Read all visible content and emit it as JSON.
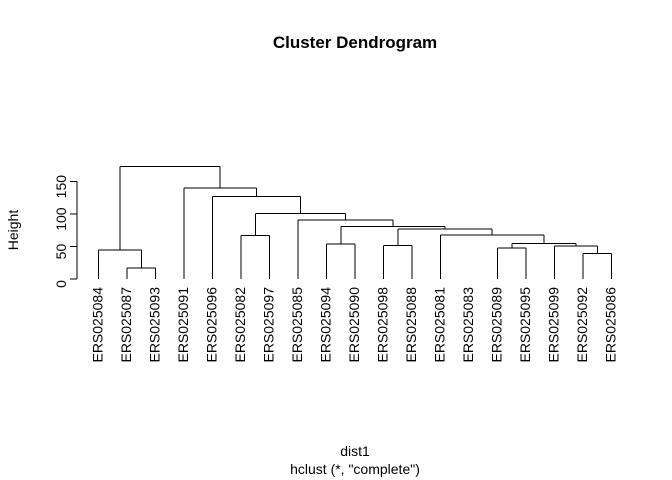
{
  "chart_data": {
    "type": "dendrogram",
    "title": "Cluster Dendrogram",
    "ylabel": "Height",
    "xlabel": "dist1",
    "subtitle": "hclust (*, \"complete\")",
    "ylim": [
      0,
      175
    ],
    "yticks": [
      0,
      50,
      100,
      150
    ],
    "ytick_labels": [
      "0",
      "50",
      "100",
      "150"
    ],
    "leaves": [
      "ERS025084",
      "ERS025087",
      "ERS025093",
      "ERS025091",
      "ERS025096",
      "ERS025082",
      "ERS025097",
      "ERS025085",
      "ERS025094",
      "ERS025090",
      "ERS025098",
      "ERS025088",
      "ERS025081",
      "ERS025083",
      "ERS025089",
      "ERS025095",
      "ERS025099",
      "ERS025092",
      "ERS025086"
    ],
    "merges": [
      {
        "id": "m1",
        "left": 2,
        "right": 3,
        "height": 17
      },
      {
        "id": "m2",
        "left": 1,
        "right": "m1",
        "height": 45
      },
      {
        "id": "m3",
        "left": 6,
        "right": 7,
        "height": 67
      },
      {
        "id": "m4",
        "left": 9,
        "right": 10,
        "height": 54
      },
      {
        "id": "m5",
        "left": 11,
        "right": 12,
        "height": 52
      },
      {
        "id": "m6",
        "left": 16,
        "right": "16b",
        "height": 46
      },
      {
        "id": "m7",
        "left": 15,
        "right": "m6",
        "height": 48
      },
      {
        "id": "m8",
        "left": 18,
        "right": 19,
        "height": 39
      },
      {
        "id": "m9",
        "left": 17,
        "right": "m8",
        "height": 51
      },
      {
        "id": "m10",
        "left": "m7",
        "right": "m9",
        "height": 55
      },
      {
        "id": "m11",
        "left": 13,
        "right": "m10",
        "height": 68
      },
      {
        "id": "m12",
        "left": "m5",
        "right": "m11",
        "height": 77
      },
      {
        "id": "m13",
        "left": "m4",
        "right": "m12",
        "height": 81
      },
      {
        "id": "m14",
        "left": 8,
        "right": "m13",
        "height": 91
      },
      {
        "id": "m15",
        "left": "m3",
        "right": "m14",
        "height": 101
      },
      {
        "id": "m16",
        "left": 5,
        "right": "m15",
        "height": 127
      },
      {
        "id": "m17",
        "left": 4,
        "right": "m16",
        "height": 140
      },
      {
        "id": "m18",
        "left": "m2",
        "right": "m17",
        "height": 173
      }
    ]
  }
}
